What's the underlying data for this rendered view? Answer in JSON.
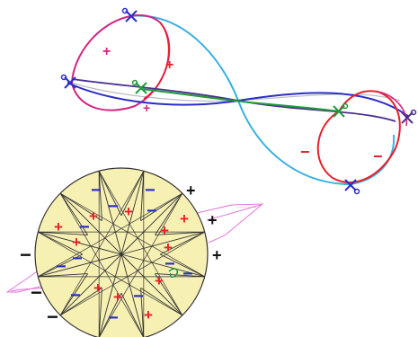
{
  "colors": {
    "red": "#e8202a",
    "magenta": "#d4247f",
    "blue": "#2a2ec8",
    "cyan": "#39b1e3",
    "green": "#1f9a3b",
    "purple": "#4a2f8f",
    "disk_fill": "#f6f0b3",
    "ribbon": "#e07ad8",
    "black": "#111111"
  },
  "top_figure": {
    "left_loop_signs": [
      "+",
      "+",
      "+"
    ],
    "right_loop_signs": [
      "−",
      "−"
    ]
  },
  "disk": {
    "outer_signs": [
      "+",
      "+",
      "+",
      "−",
      "−",
      "−"
    ],
    "inner_plus": [
      "+",
      "+",
      "+",
      "+",
      "+",
      "+",
      "+",
      "+",
      "+",
      "+",
      "+"
    ],
    "inner_minus": [
      "−",
      "−",
      "−",
      "−",
      "−",
      "−",
      "−",
      "−",
      "−",
      "−",
      "−",
      "−"
    ]
  }
}
